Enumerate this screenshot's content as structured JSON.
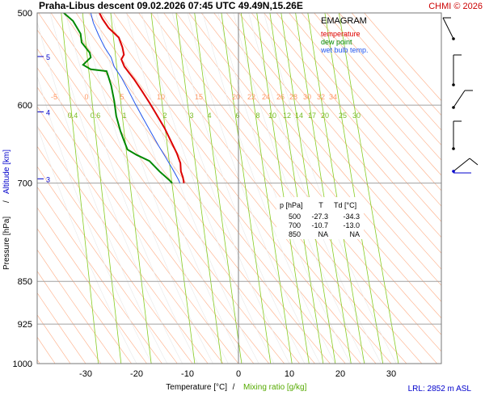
{
  "header": {
    "title": "Praha-Libus   descent   09.02.2026 07:45 UTC  49.49N,15.26E",
    "copyright": "CHMI © 2026",
    "footer_lrl": "LRL: 2852 m ASL"
  },
  "colors": {
    "temperature": "#dd0000",
    "dew_point": "#008800",
    "wet_bulb": "#2255ee",
    "mixing_ratio": "#88cc22",
    "dry_adiabat": "#ff9966",
    "moist_adiabat": "#e8e8e8",
    "isobar": "#a0a0a0",
    "altitude": "#0000cc",
    "wind": "#000000",
    "wind_blue": "#0000cc"
  },
  "chart_data": {
    "type": "line",
    "title": "EMAGRAM",
    "xlabel": "Temperature [°C]",
    "xlabel_mixing": "Mixing ratio [g/kg]",
    "xlabel_sep": "/",
    "ylabel": "Pressure [hPa]",
    "ylabel_altitude": "Altitude [km]",
    "ylabel_sep": "/",
    "xlim": [
      -38,
      39
    ],
    "x_ticks": [
      -30,
      -20,
      -10,
      0,
      10,
      20,
      30
    ],
    "y_ticks": [
      500,
      600,
      700,
      850,
      925,
      1000
    ],
    "y_scale": "log",
    "ylim": [
      1000,
      500
    ],
    "altitude_ticks": [
      {
        "km": 5,
        "p": 545
      },
      {
        "km": 4,
        "p": 608
      },
      {
        "km": 3,
        "p": 694
      }
    ],
    "legend": {
      "title": "EMAGRAM",
      "entries": [
        "temperature",
        "dew point",
        "wet bulb temp."
      ],
      "placement": "top-right"
    },
    "temperature_labels": [
      -5,
      0,
      5,
      10,
      15,
      20,
      22,
      24,
      26,
      28,
      30,
      32,
      34
    ],
    "mixing_ratio_labels": [
      "0.4",
      "0.6",
      "1",
      "2",
      "3",
      "4",
      "6",
      "8",
      "10",
      "12",
      "14",
      "17",
      "20",
      "25",
      "30"
    ],
    "series": [
      {
        "name": "temperature",
        "points": [
          [
            -27.3,
            500
          ],
          [
            -26.7,
            506
          ],
          [
            -25.5,
            515
          ],
          [
            -23.5,
            525
          ],
          [
            -22.8,
            535
          ],
          [
            -22.5,
            543
          ],
          [
            -23.0,
            548
          ],
          [
            -22.4,
            556
          ],
          [
            -20.5,
            570
          ],
          [
            -19.0,
            583
          ],
          [
            -17.5,
            597
          ],
          [
            -16.0,
            612
          ],
          [
            -14.5,
            628
          ],
          [
            -13.2,
            645
          ],
          [
            -12.1,
            660
          ],
          [
            -11.4,
            673
          ],
          [
            -11.3,
            684
          ],
          [
            -10.9,
            692
          ],
          [
            -10.7,
            700
          ]
        ]
      },
      {
        "name": "dew point",
        "points": [
          [
            -34.3,
            500
          ],
          [
            -32.5,
            508
          ],
          [
            -31.0,
            521
          ],
          [
            -30.8,
            530
          ],
          [
            -29.2,
            541
          ],
          [
            -29.0,
            546
          ],
          [
            -30.5,
            554
          ],
          [
            -29.0,
            559
          ],
          [
            -25.9,
            561
          ],
          [
            -25.6,
            566
          ],
          [
            -25.0,
            577
          ],
          [
            -24.4,
            595
          ],
          [
            -24.0,
            613
          ],
          [
            -23.2,
            631
          ],
          [
            -22.4,
            645
          ],
          [
            -21.8,
            655
          ],
          [
            -20.0,
            662
          ],
          [
            -17.5,
            670
          ],
          [
            -15.5,
            684
          ],
          [
            -13.7,
            695
          ],
          [
            -13.0,
            700
          ]
        ]
      },
      {
        "name": "wet bulb temp.",
        "points": [
          [
            -29.0,
            500
          ],
          [
            -28.5,
            510
          ],
          [
            -27.5,
            522
          ],
          [
            -26.3,
            535
          ],
          [
            -25.0,
            546
          ],
          [
            -24.4,
            556
          ],
          [
            -23.0,
            568
          ],
          [
            -21.6,
            583
          ],
          [
            -20.3,
            598
          ],
          [
            -18.7,
            616
          ],
          [
            -17.1,
            634
          ],
          [
            -15.7,
            650
          ],
          [
            -14.3,
            665
          ],
          [
            -13.0,
            680
          ],
          [
            -11.8,
            695
          ],
          [
            -11.5,
            700
          ]
        ]
      }
    ],
    "table": {
      "headers": [
        "p [hPa]",
        "T",
        "Td [°C]"
      ],
      "rows": [
        [
          "500",
          "-27.3",
          "-34.3"
        ],
        [
          "700",
          "-10.7",
          "-13.0"
        ],
        [
          "850",
          "NA",
          "NA"
        ]
      ]
    },
    "wind_barbs_p": [
      505,
      560,
      610,
      665,
      705
    ]
  }
}
